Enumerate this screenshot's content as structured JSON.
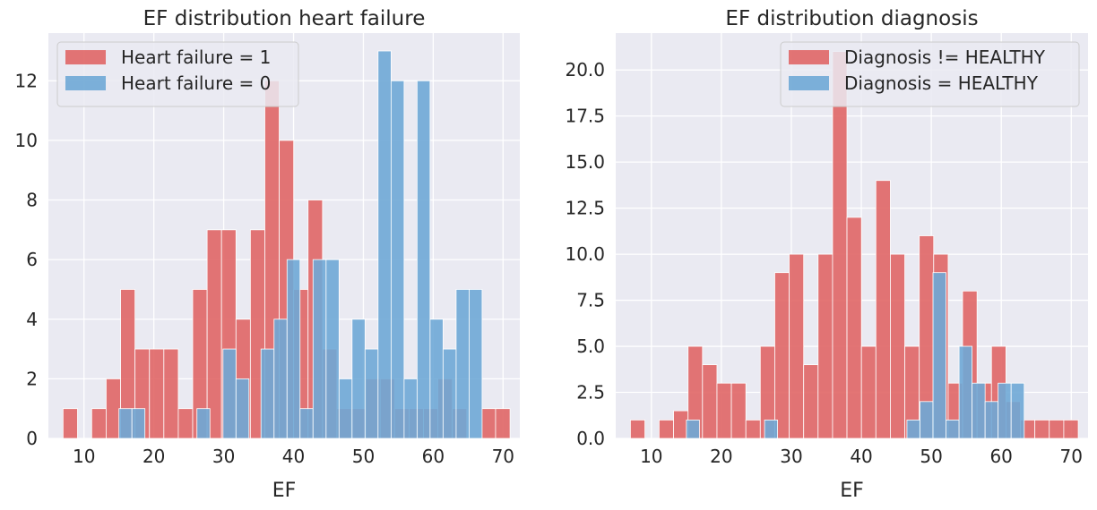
{
  "chart_data": [
    {
      "type": "histogram",
      "title": "EF distribution heart failure",
      "xlabel": "EF",
      "ylabel": "",
      "xlim": [
        4.9,
        72.4
      ],
      "ylim": [
        0,
        13.6
      ],
      "xticks": [
        10,
        20,
        30,
        40,
        50,
        60,
        70
      ],
      "yticks": [
        0,
        2,
        4,
        6,
        8,
        10,
        12
      ],
      "ytick_labels": [
        "0",
        "2",
        "4",
        "6",
        "8",
        "10",
        "12"
      ],
      "grid": true,
      "legend_position": "upper-left",
      "series": [
        {
          "name": "Heart failure = 1",
          "color": "#e06666",
          "bins": [
            [
              7.0,
              9.07,
              1
            ],
            [
              11.1,
              13.17,
              1
            ],
            [
              13.17,
              15.24,
              2
            ],
            [
              15.24,
              17.3,
              5
            ],
            [
              17.3,
              19.37,
              3
            ],
            [
              19.37,
              21.43,
              3
            ],
            [
              21.43,
              23.5,
              3
            ],
            [
              23.5,
              25.56,
              1
            ],
            [
              25.56,
              27.63,
              5
            ],
            [
              27.63,
              29.69,
              7
            ],
            [
              29.69,
              31.76,
              7
            ],
            [
              31.76,
              33.82,
              4
            ],
            [
              33.82,
              35.89,
              7
            ],
            [
              35.89,
              37.95,
              12
            ],
            [
              37.95,
              40.02,
              10
            ],
            [
              40.02,
              42.08,
              5
            ],
            [
              42.08,
              44.15,
              8
            ],
            [
              44.15,
              46.21,
              3
            ],
            [
              46.21,
              48.28,
              1
            ],
            [
              48.28,
              50.34,
              1
            ],
            [
              50.34,
              52.41,
              2
            ],
            [
              52.41,
              54.47,
              2
            ],
            [
              54.47,
              56.54,
              1
            ],
            [
              56.54,
              58.6,
              1
            ],
            [
              58.6,
              60.67,
              1
            ],
            [
              60.67,
              62.73,
              2
            ],
            [
              62.73,
              64.8,
              1
            ],
            [
              66.86,
              68.93,
              1
            ],
            [
              68.93,
              71.0,
              1
            ]
          ]
        },
        {
          "name": "Heart failure = 0",
          "color": "#6fa8d6",
          "bins": [
            [
              15.0,
              16.86,
              1
            ],
            [
              16.86,
              18.72,
              1
            ],
            [
              26.17,
              28.03,
              1
            ],
            [
              29.9,
              31.76,
              3
            ],
            [
              31.76,
              33.62,
              2
            ],
            [
              35.34,
              37.21,
              3
            ],
            [
              37.21,
              39.07,
              4
            ],
            [
              39.07,
              40.93,
              6
            ],
            [
              40.93,
              42.79,
              1
            ],
            [
              42.79,
              44.66,
              6
            ],
            [
              44.66,
              46.52,
              6
            ],
            [
              46.52,
              48.38,
              2
            ],
            [
              48.38,
              50.24,
              4
            ],
            [
              50.24,
              52.1,
              3
            ],
            [
              52.1,
              53.97,
              13
            ],
            [
              53.97,
              55.83,
              12
            ],
            [
              55.83,
              57.69,
              2
            ],
            [
              57.69,
              59.55,
              12
            ],
            [
              59.55,
              61.41,
              4
            ],
            [
              61.41,
              63.28,
              3
            ],
            [
              63.28,
              65.14,
              5
            ],
            [
              65.14,
              67.0,
              5
            ]
          ]
        }
      ],
      "legend": [
        "Heart failure = 1",
        "Heart failure = 0"
      ]
    },
    {
      "type": "histogram",
      "title": "EF distribution diagnosis",
      "xlabel": "EF",
      "ylabel": "",
      "xlim": [
        4.9,
        72.4
      ],
      "ylim": [
        0,
        22
      ],
      "xticks": [
        10,
        20,
        30,
        40,
        50,
        60,
        70
      ],
      "yticks": [
        0,
        2.5,
        5,
        7.5,
        10,
        12.5,
        15,
        17.5,
        20
      ],
      "ytick_labels": [
        "0.0",
        "2.5",
        "5.0",
        "7.5",
        "10.0",
        "12.5",
        "15.0",
        "17.5",
        "20.0"
      ],
      "grid": true,
      "legend_position": "upper-right",
      "series": [
        {
          "name": "Diagnosis != HEALTHY",
          "color": "#e06666",
          "bins": [
            [
              7.0,
              9.07,
              1
            ],
            [
              11.1,
              13.17,
              1
            ],
            [
              13.17,
              15.24,
              1.5
            ],
            [
              15.24,
              17.3,
              5
            ],
            [
              17.3,
              19.37,
              4
            ],
            [
              19.37,
              21.43,
              3
            ],
            [
              21.43,
              23.5,
              3
            ],
            [
              23.5,
              25.56,
              1
            ],
            [
              25.56,
              27.63,
              5
            ],
            [
              27.63,
              29.69,
              9
            ],
            [
              29.69,
              31.76,
              10
            ],
            [
              31.76,
              33.82,
              4
            ],
            [
              33.82,
              35.89,
              10
            ],
            [
              35.89,
              37.95,
              21
            ],
            [
              37.95,
              40.02,
              12
            ],
            [
              40.02,
              42.08,
              5
            ],
            [
              42.08,
              44.15,
              14
            ],
            [
              44.15,
              46.21,
              10
            ],
            [
              46.21,
              48.28,
              5
            ],
            [
              48.28,
              50.34,
              11
            ],
            [
              50.34,
              52.41,
              10
            ],
            [
              52.41,
              54.47,
              3
            ],
            [
              54.47,
              56.54,
              8
            ],
            [
              56.54,
              58.6,
              3
            ],
            [
              58.6,
              60.67,
              5
            ],
            [
              60.67,
              62.73,
              2
            ],
            [
              62.73,
              64.8,
              1
            ],
            [
              64.8,
              66.86,
              1
            ],
            [
              66.86,
              68.93,
              1
            ],
            [
              68.93,
              71.0,
              1
            ]
          ]
        },
        {
          "name": "Diagnosis = HEALTHY",
          "color": "#6fa8d6",
          "bins": [
            [
              15.0,
              16.86,
              1
            ],
            [
              26.17,
              28.03,
              1
            ],
            [
              46.52,
              48.38,
              1
            ],
            [
              48.38,
              50.24,
              2
            ],
            [
              50.24,
              52.1,
              9
            ],
            [
              52.1,
              53.97,
              1
            ],
            [
              53.97,
              55.83,
              5
            ],
            [
              55.83,
              57.69,
              3
            ],
            [
              57.69,
              59.55,
              2
            ],
            [
              59.55,
              61.41,
              3
            ],
            [
              61.41,
              63.28,
              3
            ]
          ]
        }
      ],
      "legend": [
        "Diagnosis != HEALTHY",
        "Diagnosis = HEALTHY"
      ]
    }
  ]
}
